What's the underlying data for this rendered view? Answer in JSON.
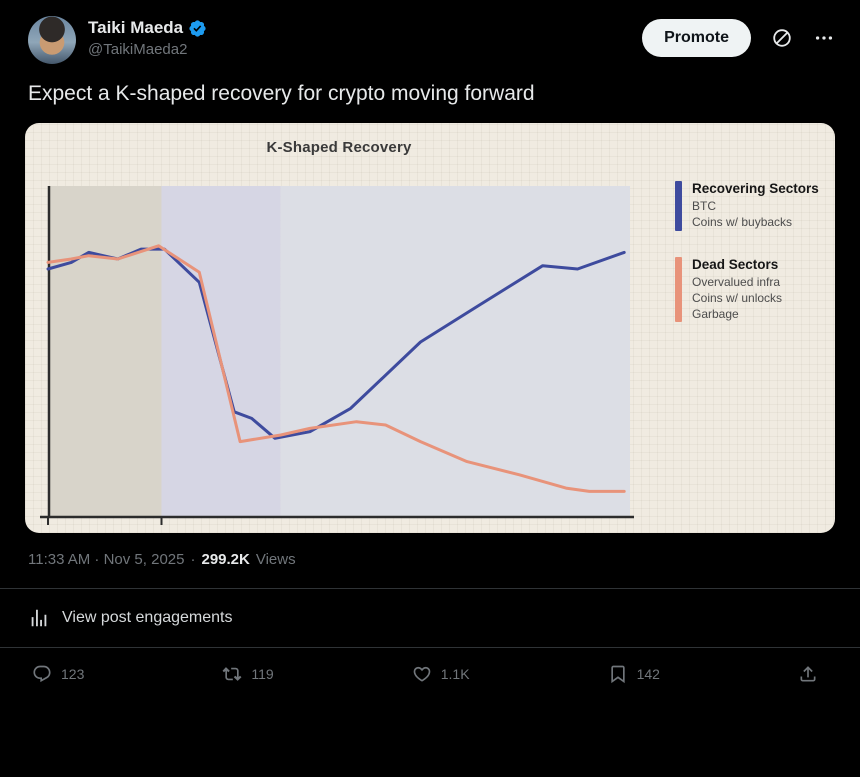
{
  "tweet": {
    "author_name": "Taiki Maeda",
    "author_handle": "@TaikiMaeda2",
    "text": "Expect a K-shaped recovery for crypto moving forward",
    "promote_label": "Promote",
    "timestamp": "11:33 AM · Nov 5, 2025",
    "sep": "·",
    "views_count": "299.2K",
    "views_label": "Views",
    "engagements_label": "View post engagements",
    "actions": {
      "reply_count": "123",
      "repost_count": "119",
      "like_count": "1.1K",
      "bookmark_count": "142"
    }
  },
  "colors": {
    "background": "#000000",
    "text_primary": "#e7e9ea",
    "text_secondary": "#71767b",
    "verified_blue": "#1d9bf0",
    "promote_bg": "#eff3f4",
    "card_bg": "#f0ebe1",
    "divider": "#2f3336"
  },
  "chart_data": {
    "type": "line",
    "title": "K-Shaped Recovery",
    "xlabel": "",
    "ylabel": "",
    "xlim": [
      0,
      100
    ],
    "ylim": [
      0,
      100
    ],
    "grid": false,
    "legend_position": "right",
    "x_ticks": [
      0,
      19.5
    ],
    "background_bands": [
      {
        "from": 0,
        "to": 19.5,
        "color": "#d8d4ca"
      },
      {
        "from": 19.5,
        "to": 40,
        "color": "#d6d6e4"
      },
      {
        "from": 40,
        "to": 100,
        "color": "#dcdee5"
      }
    ],
    "series": [
      {
        "name": "Recovering Sectors",
        "sublabels": [
          "BTC",
          "Coins w/ buybacks"
        ],
        "color": "#3e4b9e",
        "points": [
          [
            0,
            75
          ],
          [
            4,
            77
          ],
          [
            7,
            80
          ],
          [
            12,
            78
          ],
          [
            16,
            81
          ],
          [
            20,
            81
          ],
          [
            26,
            71
          ],
          [
            32,
            32
          ],
          [
            35,
            30
          ],
          [
            39,
            24
          ],
          [
            45,
            26
          ],
          [
            52,
            33
          ],
          [
            64,
            53
          ],
          [
            74,
            64
          ],
          [
            85,
            76
          ],
          [
            91,
            75
          ],
          [
            99,
            80
          ]
        ]
      },
      {
        "name": "Dead Sectors",
        "sublabels": [
          "Overvalued infra",
          "Coins w/ unlocks",
          "Garbage"
        ],
        "color": "#e8937a",
        "points": [
          [
            0,
            77
          ],
          [
            4,
            78
          ],
          [
            7,
            79
          ],
          [
            12,
            78
          ],
          [
            19,
            82
          ],
          [
            26,
            74
          ],
          [
            33,
            23
          ],
          [
            40,
            25
          ],
          [
            45,
            27
          ],
          [
            53,
            29
          ],
          [
            58,
            28
          ],
          [
            64,
            23
          ],
          [
            72,
            17
          ],
          [
            81,
            13
          ],
          [
            89,
            9
          ],
          [
            93,
            8
          ],
          [
            99,
            8
          ]
        ]
      }
    ]
  }
}
